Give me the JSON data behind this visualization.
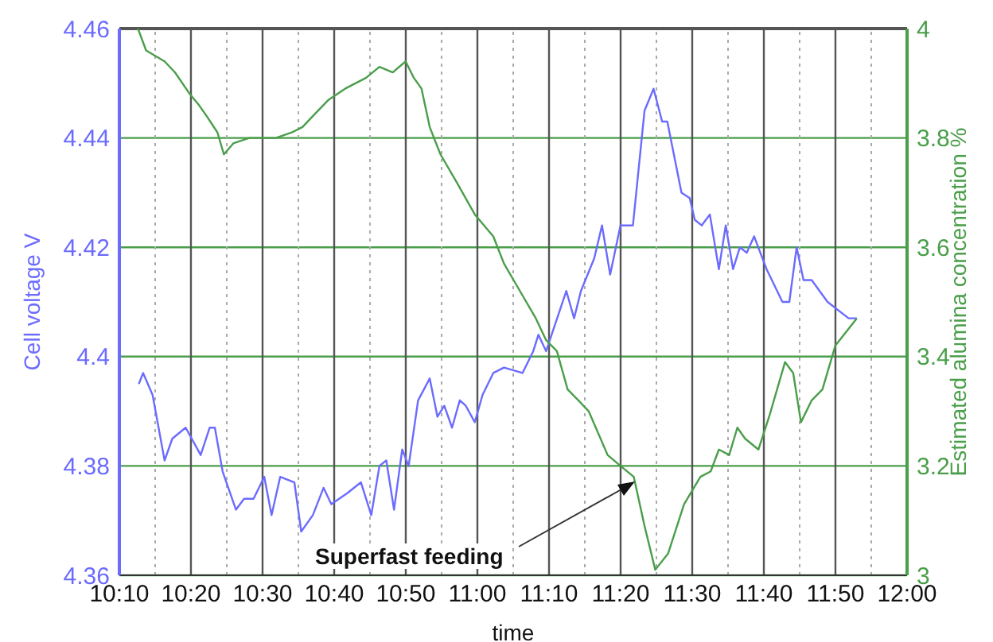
{
  "chart_data": {
    "type": "line",
    "xlabel": "time",
    "ylabel": "Cell voltage V",
    "y2label": "Estimated alumina concentration %",
    "xlim": [
      10.1667,
      12
    ],
    "xticks": [
      {
        "value": 10.1667,
        "label": "10:10"
      },
      {
        "value": 10.3333,
        "label": "10:20"
      },
      {
        "value": 10.5,
        "label": "10:30"
      },
      {
        "value": 10.6667,
        "label": "10:40"
      },
      {
        "value": 10.8333,
        "label": "10:50"
      },
      {
        "value": 11,
        "label": "11:00"
      },
      {
        "value": 11.1667,
        "label": "11:10"
      },
      {
        "value": 11.3333,
        "label": "11:20"
      },
      {
        "value": 11.5,
        "label": "11:30"
      },
      {
        "value": 11.6667,
        "label": "11:40"
      },
      {
        "value": 11.8333,
        "label": "11:50"
      },
      {
        "value": 12,
        "label": "12:00"
      }
    ],
    "ylim": [
      4.36,
      4.46
    ],
    "yticks": [
      4.36,
      4.38,
      4.4,
      4.42,
      4.44,
      4.46
    ],
    "y2lim": [
      3,
      4
    ],
    "y2ticks": [
      3,
      3.2,
      3.4,
      3.6,
      3.8,
      4
    ],
    "grid": true,
    "legend": false,
    "marker": "none",
    "line_style": "solid",
    "series": [
      {
        "color": "#6b6bff",
        "x": [
          10.212,
          10.222,
          10.244,
          10.272,
          10.29,
          10.321,
          10.356,
          10.377,
          10.389,
          10.407,
          10.438,
          10.457,
          10.479,
          10.504,
          10.521,
          10.541,
          10.574,
          10.59,
          10.617,
          10.642,
          10.66,
          10.697,
          10.729,
          10.753,
          10.772,
          10.788,
          10.806,
          10.825,
          10.84,
          10.862,
          10.889,
          10.907,
          10.923,
          10.941,
          10.959,
          10.973,
          10.994,
          11.012,
          11.037,
          11.062,
          11.105,
          11.13,
          11.142,
          11.16,
          11.207,
          11.225,
          11.241,
          11.272,
          11.29,
          11.309,
          11.333,
          11.362,
          11.389,
          11.41,
          11.43,
          11.442,
          11.475,
          11.494,
          11.506,
          11.522,
          11.541,
          11.562,
          11.578,
          11.595,
          11.611,
          11.627,
          11.644,
          11.673,
          11.71,
          11.726,
          11.743,
          11.759,
          11.778,
          11.815,
          11.864,
          11.883
        ],
        "values": [
          4.395,
          4.397,
          4.393,
          4.381,
          4.385,
          4.387,
          4.382,
          4.387,
          4.387,
          4.379,
          4.372,
          4.374,
          4.374,
          4.378,
          4.371,
          4.378,
          4.377,
          4.368,
          4.371,
          4.376,
          4.373,
          4.375,
          4.377,
          4.371,
          4.38,
          4.381,
          4.372,
          4.383,
          4.38,
          4.392,
          4.396,
          4.389,
          4.391,
          4.387,
          4.392,
          4.391,
          4.388,
          4.393,
          4.397,
          4.398,
          4.397,
          4.401,
          4.404,
          4.401,
          4.412,
          4.407,
          4.412,
          4.418,
          4.424,
          4.415,
          4.424,
          4.424,
          4.445,
          4.449,
          4.443,
          4.443,
          4.43,
          4.429,
          4.425,
          4.424,
          4.426,
          4.416,
          4.424,
          4.416,
          4.42,
          4.419,
          4.422,
          4.416,
          4.41,
          4.41,
          4.42,
          4.414,
          4.414,
          4.41,
          4.407,
          4.407
        ]
      },
      {
        "color": "#4a9e4a",
        "axis": "y2",
        "x": [
          10.21,
          10.229,
          10.272,
          10.296,
          10.331,
          10.352,
          10.37,
          10.395,
          10.41,
          10.432,
          10.469,
          10.5,
          10.531,
          10.568,
          10.593,
          10.617,
          10.654,
          10.692,
          10.741,
          10.772,
          10.803,
          10.833,
          10.852,
          10.87,
          10.889,
          10.914,
          10.951,
          10.994,
          11.037,
          11.062,
          11.099,
          11.136,
          11.16,
          11.185,
          11.21,
          11.235,
          11.259,
          11.303,
          11.333,
          11.364,
          11.389,
          11.414,
          11.444,
          11.481,
          11.519,
          11.543,
          11.562,
          11.586,
          11.605,
          11.623,
          11.654,
          11.679,
          11.716,
          11.735,
          11.753,
          11.778,
          11.803,
          11.833,
          11.883
        ],
        "values": [
          4,
          3.96,
          3.94,
          3.92,
          3.88,
          3.86,
          3.84,
          3.81,
          3.77,
          3.79,
          3.8,
          3.8,
          3.8,
          3.81,
          3.82,
          3.84,
          3.87,
          3.89,
          3.91,
          3.93,
          3.92,
          3.94,
          3.91,
          3.89,
          3.82,
          3.77,
          3.72,
          3.66,
          3.62,
          3.57,
          3.52,
          3.47,
          3.43,
          3.41,
          3.34,
          3.32,
          3.3,
          3.22,
          3.2,
          3.18,
          3.09,
          3.01,
          3.04,
          3.13,
          3.18,
          3.19,
          3.23,
          3.22,
          3.27,
          3.25,
          3.23,
          3.29,
          3.39,
          3.37,
          3.28,
          3.32,
          3.34,
          3.42,
          3.47
        ]
      }
    ],
    "annotations": [
      "Superfast feeding"
    ]
  }
}
